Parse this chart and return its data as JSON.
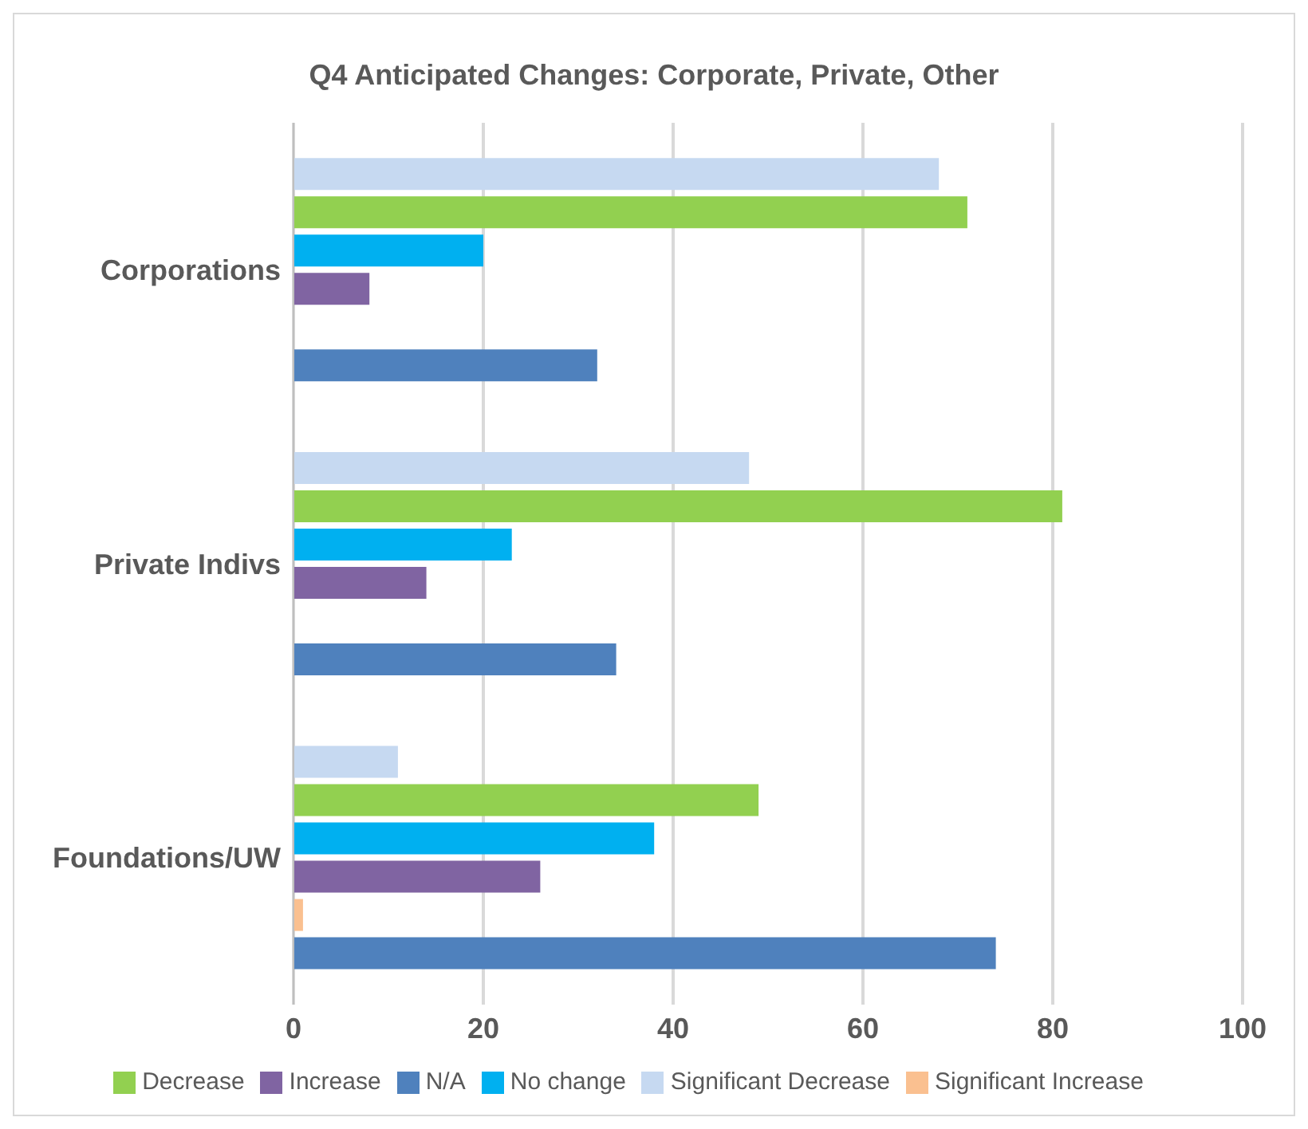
{
  "chart_data": {
    "type": "bar",
    "orientation": "horizontal",
    "title": "Q4 Anticipated Changes: Corporate, Private, Other",
    "categories": [
      "Corporations",
      "Private Indivs",
      "Foundations/UW"
    ],
    "series": [
      {
        "name": "Significant Decrease",
        "color": "#c6d9f1",
        "values": [
          68,
          48,
          11
        ]
      },
      {
        "name": "Decrease",
        "color": "#92d050",
        "values": [
          71,
          81,
          49
        ]
      },
      {
        "name": "No change",
        "color": "#00b0f0",
        "values": [
          20,
          23,
          38
        ]
      },
      {
        "name": "Increase",
        "color": "#8064a2",
        "values": [
          8,
          14,
          26
        ]
      },
      {
        "name": "Significant Increase",
        "color": "#fac090",
        "values": [
          0,
          0,
          1
        ]
      },
      {
        "name": "N/A",
        "color": "#4f81bd",
        "values": [
          32,
          34,
          74
        ]
      }
    ],
    "xlim": [
      0,
      100
    ],
    "xticks": [
      0,
      20,
      40,
      60,
      80,
      100
    ],
    "grid": "x",
    "legend": "bottom"
  }
}
